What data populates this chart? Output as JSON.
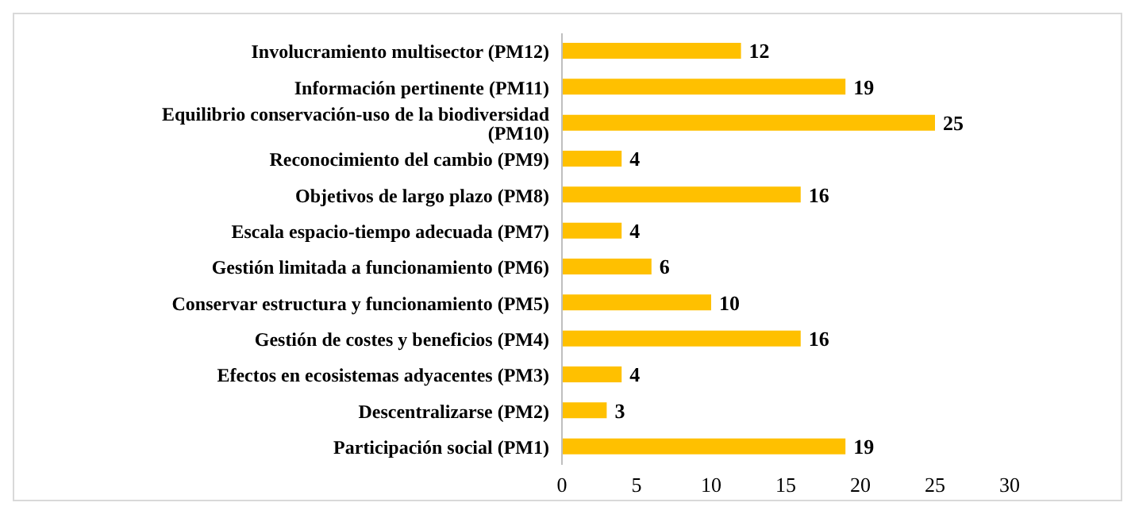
{
  "chart_data": {
    "type": "bar",
    "orientation": "horizontal",
    "categories": [
      "Involucramiento multisector (PM12)",
      "Información pertinente (PM11)",
      "Equilibrio conservación-uso de la biodiversidad (PM10)",
      "Reconocimiento del cambio (PM9)",
      "Objetivos de largo plazo (PM8)",
      "Escala espacio-tiempo adecuada (PM7)",
      "Gestión limitada a funcionamiento (PM6)",
      "Conservar estructura y funcionamiento (PM5)",
      "Gestión de costes y beneficios (PM4)",
      "Efectos en ecosistemas adyacentes (PM3)",
      "Descentralizarse (PM2)",
      "Participación social (PM1)"
    ],
    "values": [
      12,
      19,
      25,
      4,
      16,
      4,
      6,
      10,
      16,
      4,
      3,
      19
    ],
    "color": "#ffc000",
    "xlim": [
      0,
      30
    ],
    "xticks": [
      0,
      5,
      10,
      15,
      20,
      25,
      30
    ],
    "grid": false,
    "data_labels": true
  }
}
